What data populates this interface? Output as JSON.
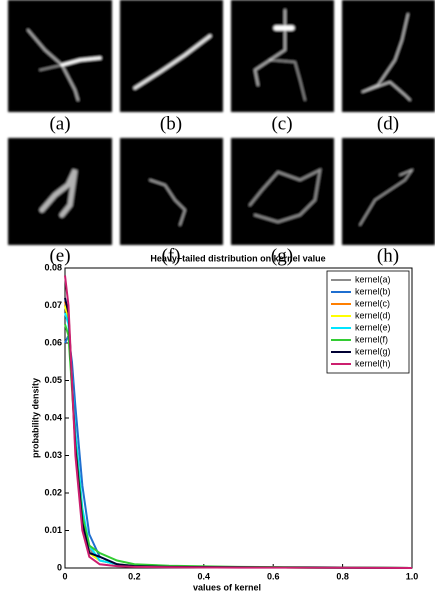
{
  "panels": [
    {
      "label": "(a)"
    },
    {
      "label": "(b)"
    },
    {
      "label": "(c)"
    },
    {
      "label": "(d)"
    },
    {
      "label": "(e)"
    },
    {
      "label": "(f)"
    },
    {
      "label": "(g)"
    },
    {
      "label": "(h)"
    }
  ],
  "chart_data": {
    "type": "line",
    "title": "Heavy−tailed distribution on kernel value",
    "xlabel": "values of kernel",
    "ylabel": "probability density",
    "x": [
      0,
      0.01,
      0.02,
      0.03,
      0.05,
      0.07,
      0.1,
      0.15,
      0.2,
      0.3,
      0.5,
      0.7,
      1.0
    ],
    "series": [
      {
        "name": "kernel(a)",
        "color": "#8c8c8c",
        "values": [
          0.07,
          0.066,
          0.052,
          0.036,
          0.015,
          0.005,
          0.002,
          0.001,
          0.0006,
          0.0003,
          0.0002,
          0.0001,
          0
        ]
      },
      {
        "name": "kernel(b)",
        "color": "#1f6fd0",
        "values": [
          0.06,
          0.062,
          0.055,
          0.043,
          0.022,
          0.009,
          0.003,
          0.001,
          0.0005,
          0.0003,
          0.0002,
          0.0002,
          0
        ]
      },
      {
        "name": "kernel(c)",
        "color": "#ff7f00",
        "values": [
          0.071,
          0.067,
          0.05,
          0.034,
          0.013,
          0.004,
          0.002,
          0.001,
          0.0005,
          0.0003,
          0.0002,
          0.0001,
          0
        ]
      },
      {
        "name": "kernel(d)",
        "color": "#ffff00",
        "values": [
          0.07,
          0.066,
          0.049,
          0.033,
          0.013,
          0.004,
          0.002,
          0.001,
          0.0005,
          0.0003,
          0.0002,
          0.0001,
          0
        ]
      },
      {
        "name": "kernel(e)",
        "color": "#00e5ff",
        "values": [
          0.068,
          0.065,
          0.051,
          0.036,
          0.016,
          0.006,
          0.002,
          0.001,
          0.0005,
          0.0003,
          0.0002,
          0.0001,
          0
        ]
      },
      {
        "name": "kernel(f)",
        "color": "#33cc33",
        "values": [
          0.065,
          0.062,
          0.048,
          0.033,
          0.014,
          0.006,
          0.004,
          0.002,
          0.001,
          0.0006,
          0.0003,
          0.0002,
          0
        ]
      },
      {
        "name": "kernel(g)",
        "color": "#000033",
        "values": [
          0.072,
          0.068,
          0.05,
          0.032,
          0.012,
          0.004,
          0.003,
          0.001,
          0.0005,
          0.0003,
          0.0002,
          0.0001,
          0
        ]
      },
      {
        "name": "kernel(h)",
        "color": "#cc1f6f",
        "values": [
          0.078,
          0.07,
          0.05,
          0.03,
          0.01,
          0.003,
          0.001,
          0.0005,
          0.0003,
          0.0002,
          0.0001,
          0.0001,
          0
        ]
      }
    ],
    "xlim": [
      0,
      1
    ],
    "ylim": [
      0,
      0.08
    ],
    "xticks": [
      0,
      0.2,
      0.4,
      0.6,
      0.8,
      {
        "value": 1,
        "label": "1.0"
      }
    ],
    "yticks": [
      0,
      0.01,
      0.02,
      0.03,
      0.04,
      0.05,
      0.06,
      0.07,
      0.08
    ],
    "legend": "upper right"
  }
}
